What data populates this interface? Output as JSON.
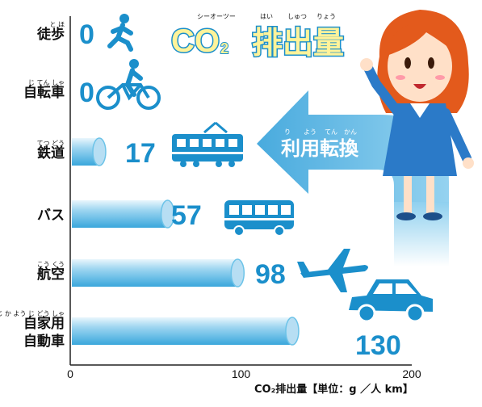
{
  "colors": {
    "bar": "#6cc3e8",
    "bar_end": "#b7def3",
    "value": "#1b8fcb",
    "icon": "#1b8fcb",
    "arrow": "#5bb6e4"
  },
  "banner": {
    "main": "CO",
    "sub": "2",
    "word": "排出量",
    "ruby_co2": "シーオーツー",
    "ruby_word": [
      "はい",
      "しゅつ",
      "りょう"
    ]
  },
  "arrow_text": "利用転換",
  "arrow_ruby": [
    "り",
    "よう",
    "てん",
    "かん"
  ],
  "chart_data": {
    "type": "bar",
    "orientation": "horizontal",
    "categories": [
      {
        "lines": [
          "徒歩"
        ],
        "ruby": [
          "と",
          "ほ"
        ]
      },
      {
        "lines": [
          "自転車"
        ],
        "ruby": [
          "じ",
          "てん",
          "しゃ"
        ]
      },
      {
        "lines": [
          "鉄道"
        ],
        "ruby": [
          "てつ",
          "どう"
        ]
      },
      {
        "lines": [
          "バス"
        ],
        "ruby": []
      },
      {
        "lines": [
          "航空"
        ],
        "ruby": [
          "こう",
          "くう"
        ]
      },
      {
        "lines": [
          "自家用",
          "自動車"
        ],
        "ruby": [
          "じ",
          "か",
          "よう",
          "じ",
          "どう",
          "しゃ"
        ]
      }
    ],
    "values": [
      0,
      0,
      17,
      57,
      98,
      130
    ],
    "value_labels": [
      "0",
      "0",
      "17",
      "57",
      "98",
      "130"
    ],
    "icons": [
      "walking-person-icon",
      "bicycle-icon",
      "train-icon",
      "bus-icon",
      "airplane-icon",
      "car-icon"
    ],
    "xlim": [
      0,
      200
    ],
    "xticks": [
      "0",
      "100",
      "200"
    ],
    "xlabel": "CO₂排出量【単位：g ／人 km】"
  }
}
